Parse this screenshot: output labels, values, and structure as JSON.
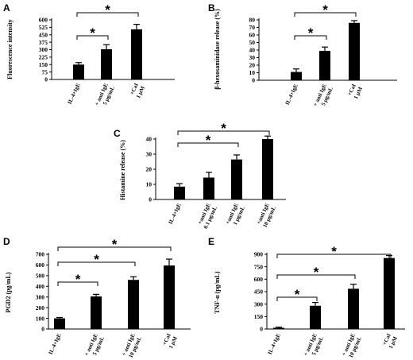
{
  "chart_data": [
    {
      "panel": "A",
      "type": "bar",
      "ylabel": "Fluorescence intensity",
      "ylim": [
        0,
        600
      ],
      "yticks": [
        0,
        75,
        150,
        225,
        300,
        375,
        450,
        525,
        600
      ],
      "categories": [
        [
          "IL-4+IgE"
        ],
        [
          "+ anti IgE",
          "5 μg/mL"
        ],
        [
          "+CaI",
          "1 μM"
        ]
      ],
      "values": [
        150,
        305,
        505
      ],
      "errors": [
        20,
        45,
        50
      ],
      "significance": [
        {
          "from": 0,
          "to": 1,
          "label": "*"
        },
        {
          "from": 0,
          "to": 2,
          "label": "*"
        }
      ]
    },
    {
      "panel": "B",
      "type": "bar",
      "ylabel": "β-hexosaminidase release (%)",
      "ylim": [
        0,
        80
      ],
      "yticks": [
        0,
        10,
        20,
        30,
        40,
        50,
        60,
        70,
        80
      ],
      "categories": [
        [
          "IL-4+IgE"
        ],
        [
          "+ anti IgE",
          "5 μg/mL"
        ],
        [
          "+CaI",
          "1 μM"
        ]
      ],
      "values": [
        11,
        39,
        76
      ],
      "errors": [
        4,
        5,
        3
      ],
      "significance": [
        {
          "from": 0,
          "to": 1,
          "label": "*"
        },
        {
          "from": 0,
          "to": 2,
          "label": "*"
        }
      ]
    },
    {
      "panel": "C",
      "type": "bar",
      "ylabel": "Histamine release (%)",
      "ylim": [
        0,
        40
      ],
      "yticks": [
        0,
        10,
        20,
        30,
        40
      ],
      "categories": [
        [
          "IL-4+IgE"
        ],
        [
          "+anti IgE",
          "0.1 μg/mL"
        ],
        [
          "+anti IgE",
          "1 μg/mL"
        ],
        [
          "+anti IgE",
          "10 μg/mL"
        ]
      ],
      "values": [
        8.5,
        14.5,
        26.5,
        40
      ],
      "errors": [
        2,
        3.5,
        3,
        2
      ],
      "significance": [
        {
          "from": 0,
          "to": 2,
          "label": "*"
        },
        {
          "from": 0,
          "to": 3,
          "label": "*"
        }
      ]
    },
    {
      "panel": "D",
      "type": "bar",
      "ylabel": "PGD2 (pg/mL)",
      "ylim": [
        0,
        700
      ],
      "yticks": [
        0,
        100,
        200,
        300,
        400,
        500,
        600,
        700
      ],
      "categories": [
        [
          "IL-4+IgE"
        ],
        [
          "+ anti IgE",
          "5 μg/mL"
        ],
        [
          "+ anti IgE",
          "10 μg/mL"
        ],
        [
          "+CaI",
          "1 μM"
        ]
      ],
      "values": [
        100,
        305,
        460,
        595
      ],
      "errors": [
        8,
        20,
        30,
        60
      ],
      "significance": [
        {
          "from": 0,
          "to": 1,
          "label": "*"
        },
        {
          "from": 0,
          "to": 2,
          "label": "*"
        },
        {
          "from": 0,
          "to": 3,
          "label": "*"
        }
      ]
    },
    {
      "panel": "E",
      "type": "bar",
      "ylabel": "TNF-α (pg/mL)",
      "ylim": [
        0,
        900
      ],
      "yticks": [
        0,
        150,
        300,
        450,
        600,
        750,
        900
      ],
      "categories": [
        [
          "IL-4+IgE"
        ],
        [
          "+ anti IgE",
          "5 μg/mL"
        ],
        [
          "+ anti IgE",
          "10 μg/mL"
        ],
        [
          "+CaI",
          "1 μM"
        ]
      ],
      "values": [
        15,
        280,
        485,
        855
      ],
      "errors": [
        8,
        40,
        55,
        30
      ],
      "significance": [
        {
          "from": 0,
          "to": 1,
          "label": "*"
        },
        {
          "from": 0,
          "to": 2,
          "label": "*"
        },
        {
          "from": 0,
          "to": 3,
          "label": "*"
        }
      ]
    }
  ]
}
